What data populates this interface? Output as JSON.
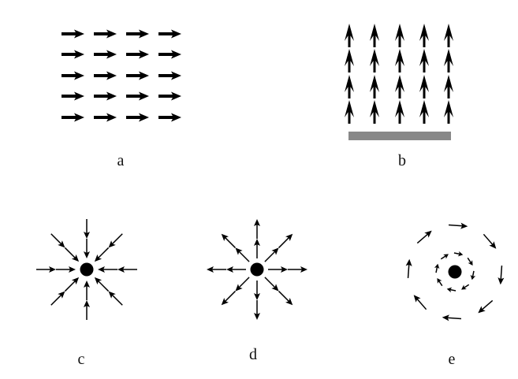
{
  "colors": {
    "ink": "#000000",
    "plate": "#888888",
    "background": "#ffffff"
  },
  "panels": [
    {
      "id": "a",
      "label": "a",
      "field": "uniform-rightward"
    },
    {
      "id": "b",
      "label": "b",
      "field": "uniform-upward-above-plate"
    },
    {
      "id": "c",
      "label": "c",
      "field": "radial-inward"
    },
    {
      "id": "d",
      "label": "d",
      "field": "radial-outward"
    },
    {
      "id": "e",
      "label": "e",
      "field": "circulating-clockwise"
    }
  ]
}
